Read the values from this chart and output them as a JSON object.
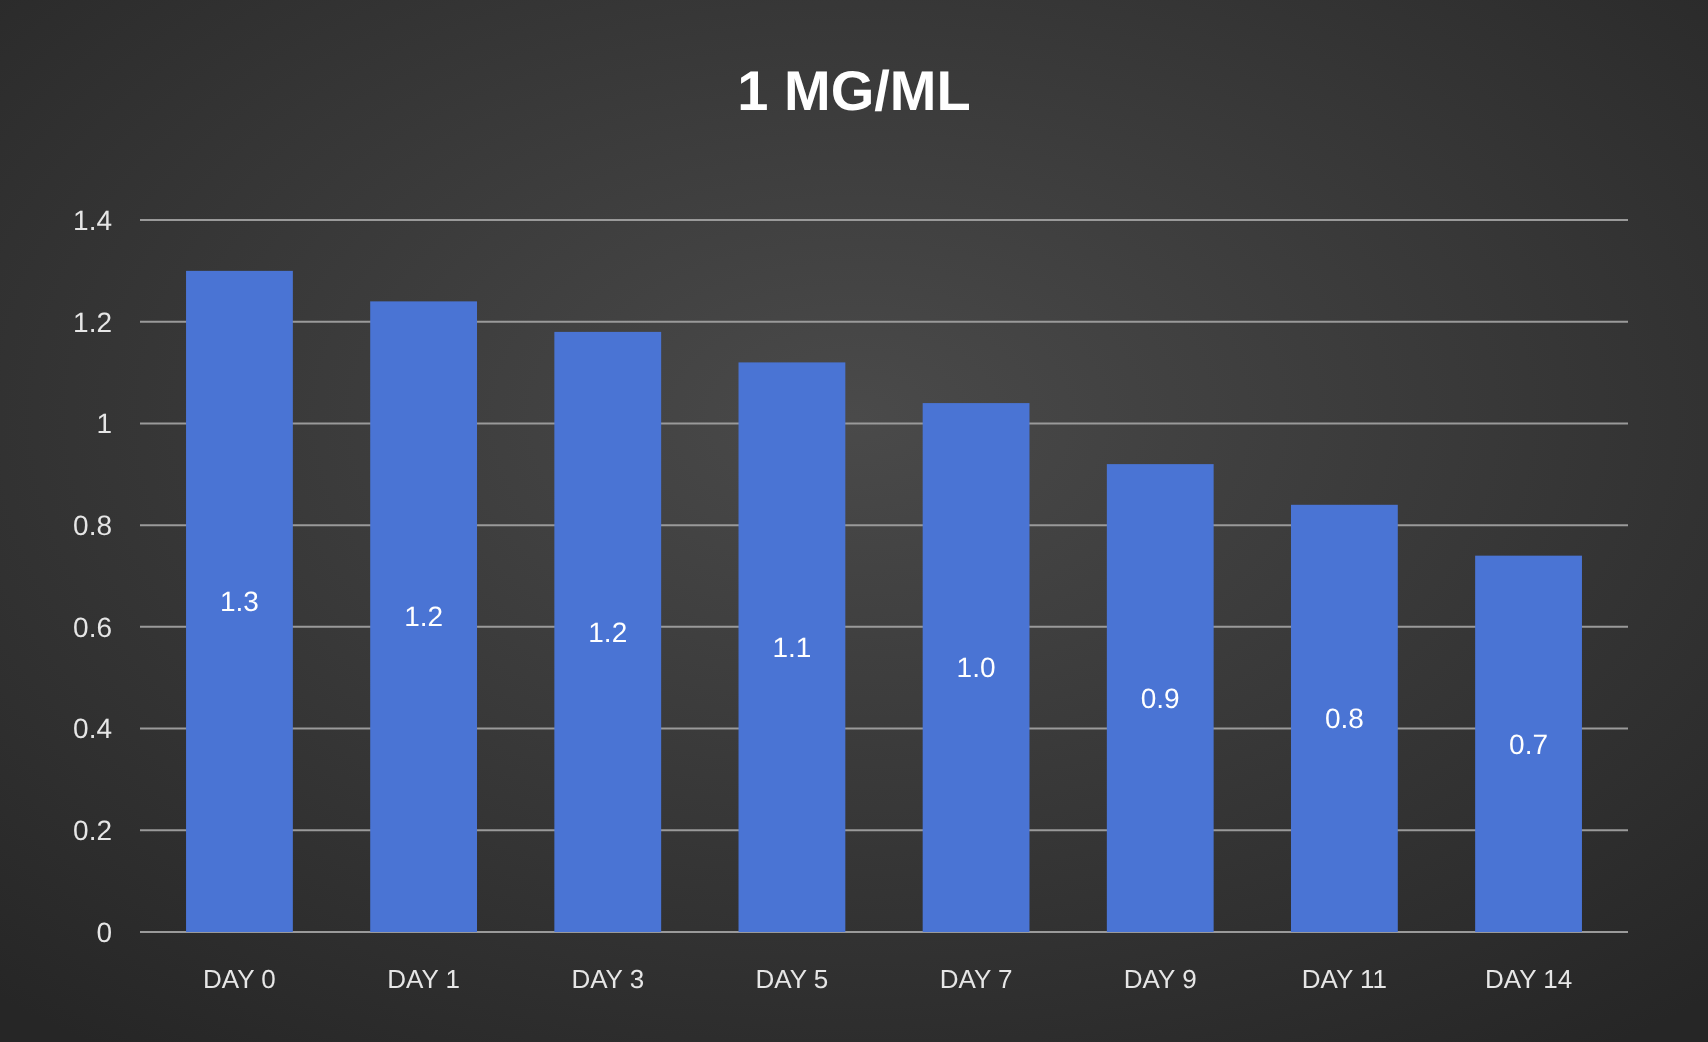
{
  "chart_data": {
    "type": "bar",
    "title": "1 MG/ML",
    "categories": [
      "DAY 0",
      "DAY 1",
      "DAY 3",
      "DAY 5",
      "DAY 7",
      "DAY 9",
      "DAY 11",
      "DAY 14"
    ],
    "values": [
      1.3,
      1.24,
      1.18,
      1.12,
      1.04,
      0.92,
      0.84,
      0.74
    ],
    "value_labels": [
      "1.3",
      "1.2",
      "1.2",
      "1.1",
      "1.0",
      "0.9",
      "0.8",
      "0.7"
    ],
    "color": "#4a74d4",
    "ylim": [
      0,
      1.4
    ],
    "yticks": [
      0,
      0.2,
      0.4,
      0.6,
      0.8,
      1,
      1.2,
      1.4
    ],
    "grid": "y"
  }
}
